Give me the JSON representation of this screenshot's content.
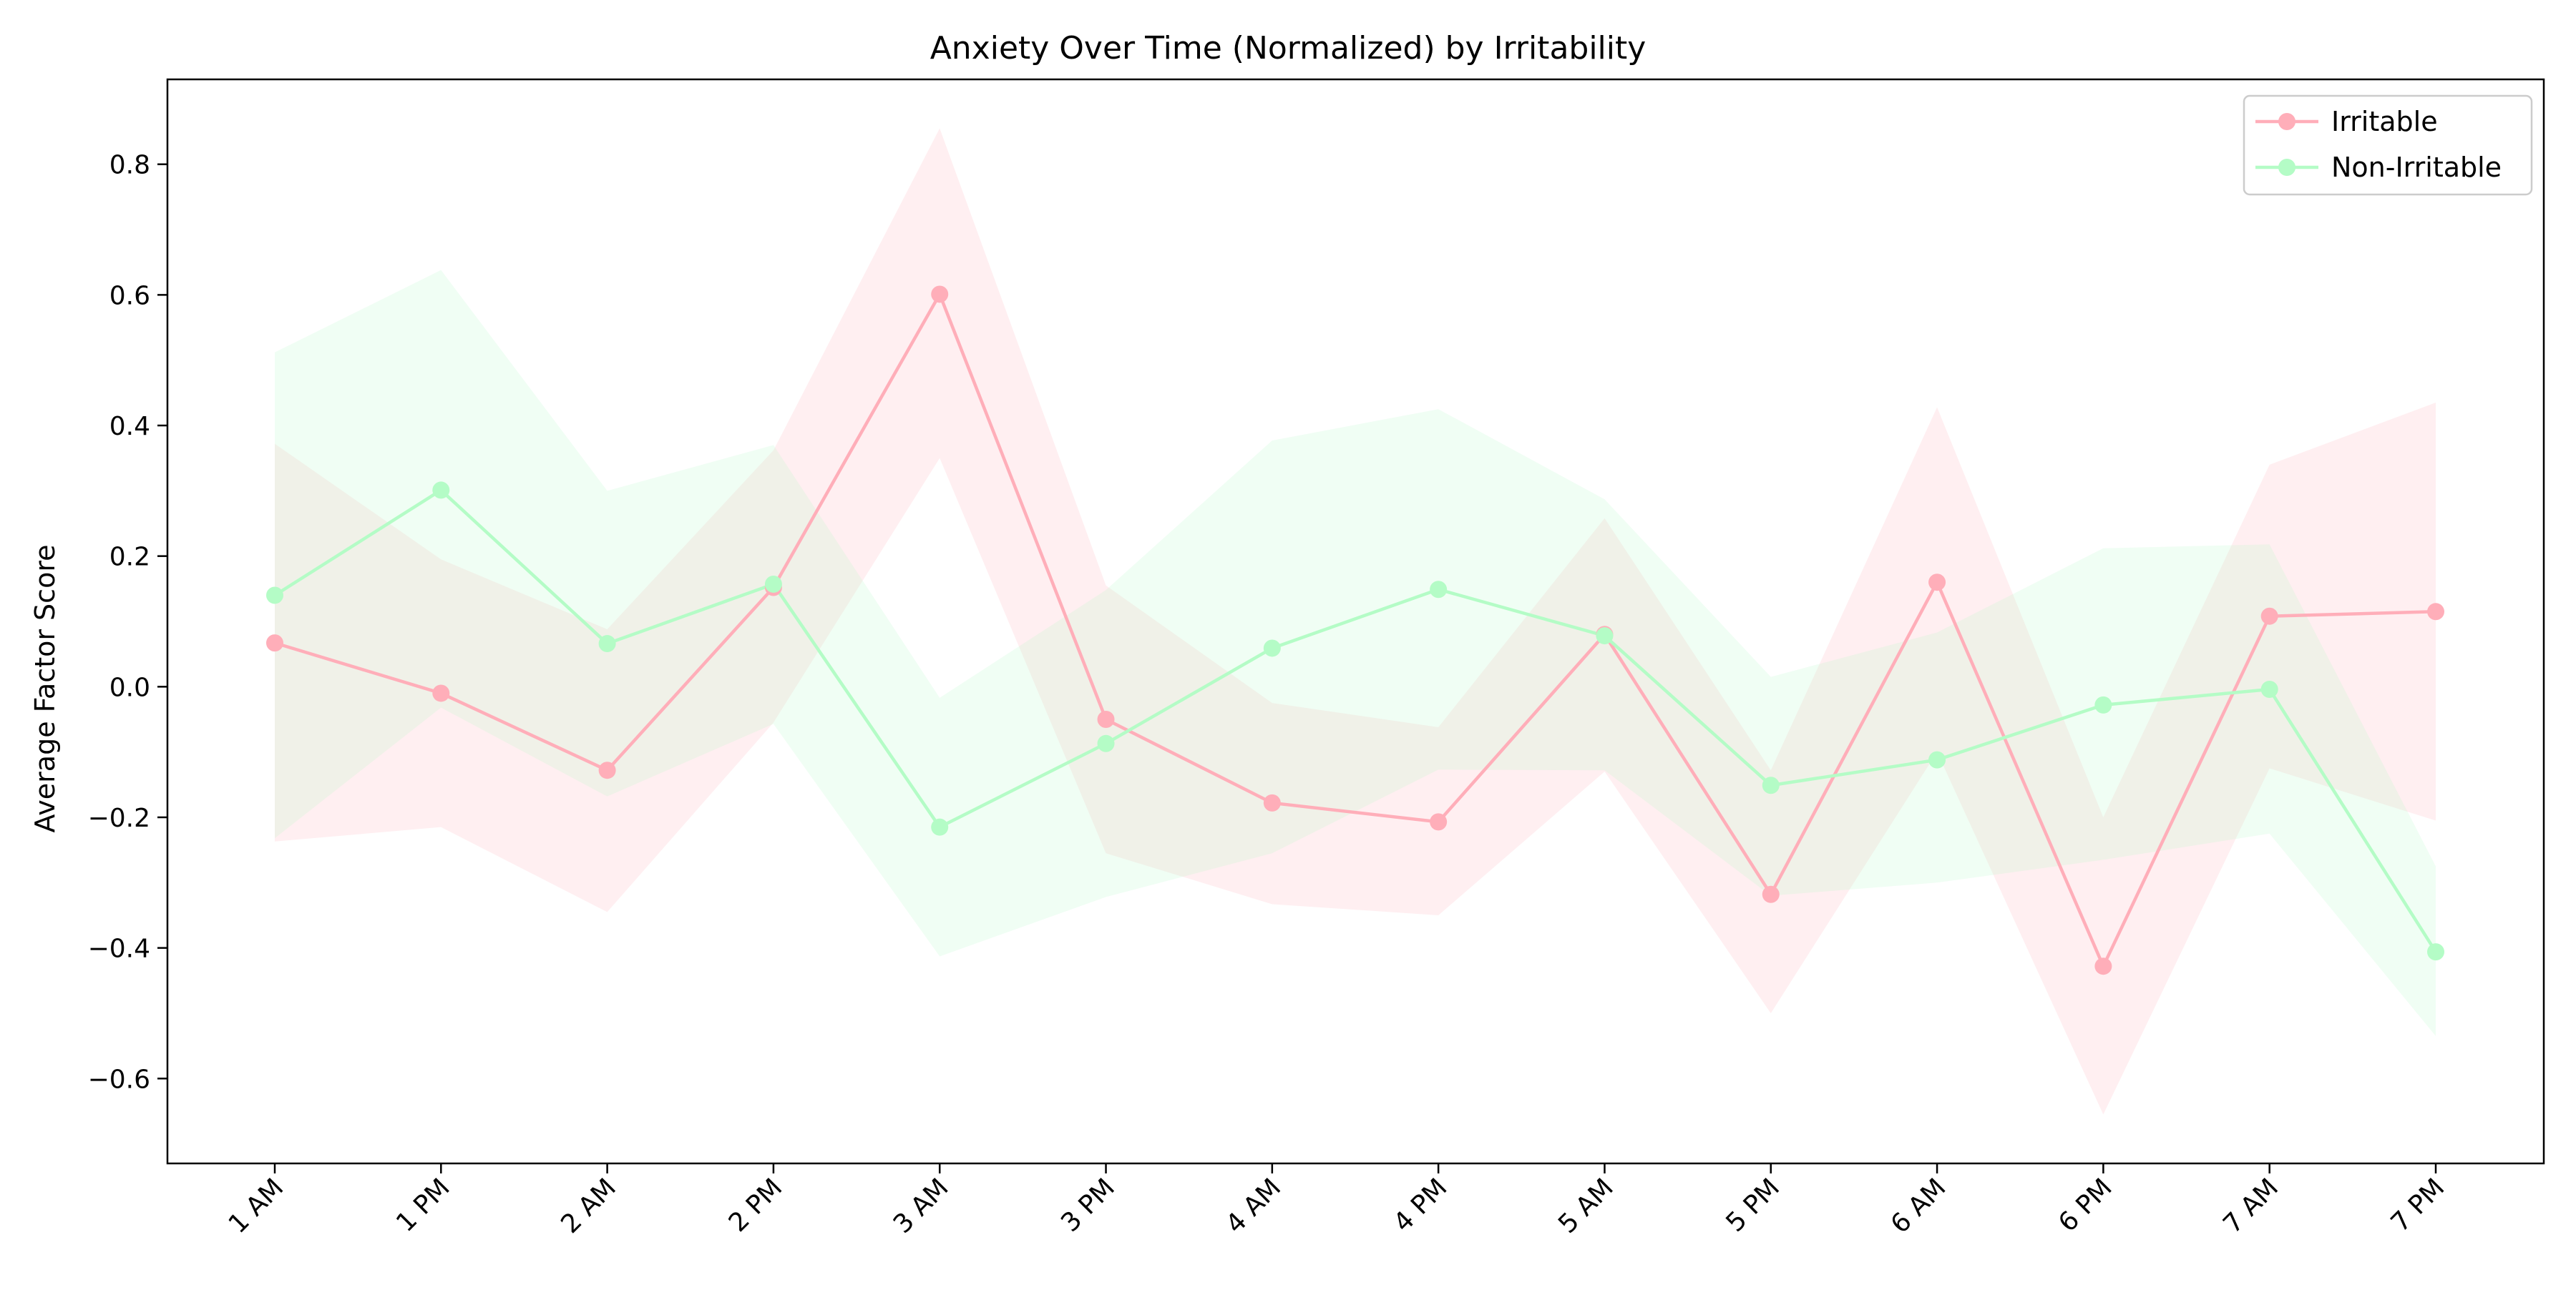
{
  "chart_data": {
    "type": "line",
    "title": "Anxiety Over Time (Normalized) by Irritability",
    "xlabel": "",
    "ylabel": "Average Factor Score",
    "categories": [
      "1 AM",
      "1 PM",
      "2 AM",
      "2 PM",
      "3 AM",
      "3 PM",
      "4 AM",
      "4 PM",
      "5 AM",
      "5 PM",
      "6 AM",
      "6 PM",
      "7 AM",
      "7 PM"
    ],
    "ylim": [
      -0.73,
      0.93
    ],
    "yticks": [
      -0.6,
      -0.4,
      -0.2,
      0.0,
      0.2,
      0.4,
      0.6,
      0.8
    ],
    "ytick_labels": [
      "−0.6",
      "−0.4",
      "−0.2",
      "0.0",
      "0.2",
      "0.4",
      "0.6",
      "0.8"
    ],
    "grid": false,
    "legend_position": "top-right",
    "series": [
      {
        "name": "Irritable",
        "color": "#ffaeb9",
        "values": [
          0.067,
          -0.01,
          -0.128,
          0.152,
          0.601,
          -0.05,
          -0.178,
          -0.207,
          0.08,
          -0.318,
          0.16,
          -0.428,
          0.108,
          0.115
        ],
        "lower": [
          -0.237,
          -0.215,
          -0.345,
          -0.055,
          0.35,
          -0.255,
          -0.333,
          -0.35,
          -0.13,
          -0.5,
          -0.1,
          -0.655,
          -0.125,
          -0.205
        ],
        "upper": [
          0.372,
          0.195,
          0.088,
          0.362,
          0.855,
          0.155,
          -0.025,
          -0.062,
          0.258,
          -0.128,
          0.428,
          -0.2,
          0.34,
          0.435
        ]
      },
      {
        "name": "Non-Irritable",
        "color": "#b4fcc6",
        "values": [
          0.14,
          0.301,
          0.066,
          0.157,
          -0.215,
          -0.087,
          0.059,
          0.149,
          0.078,
          -0.151,
          -0.112,
          -0.028,
          -0.004,
          -0.406
        ],
        "lower": [
          -0.232,
          -0.032,
          -0.168,
          -0.057,
          -0.413,
          -0.322,
          -0.255,
          -0.127,
          -0.128,
          -0.32,
          -0.3,
          -0.265,
          -0.225,
          -0.535
        ],
        "upper": [
          0.512,
          0.638,
          0.3,
          0.37,
          -0.017,
          0.148,
          0.377,
          0.425,
          0.287,
          0.015,
          0.083,
          0.212,
          0.218,
          -0.275
        ]
      }
    ]
  }
}
